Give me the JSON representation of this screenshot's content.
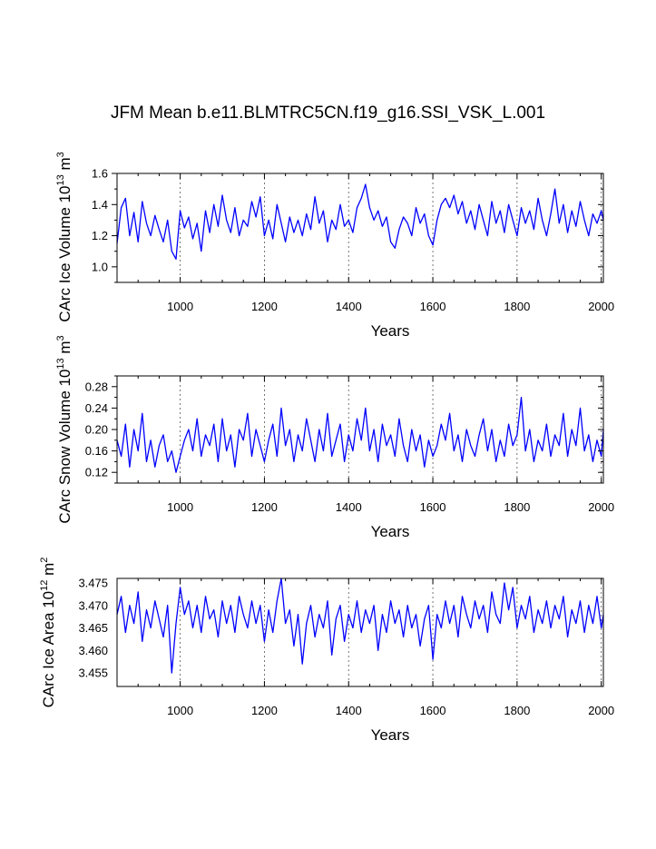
{
  "title": "JFM Mean b.e11.BLMTRC5CN.f19_g16.SSI_VSK_L.001",
  "colors": {
    "line": "#0000ff",
    "axis": "#000000",
    "grid": "#555555"
  },
  "chart_data": [
    {
      "type": "line",
      "ylabel": "CArc Ice Volume 10",
      "ylabel_sup": "13",
      "ylabel_unit": "m",
      "ylabel_unit_sup": "3",
      "xlabel": "Years",
      "xlim": [
        850,
        2005
      ],
      "ylim": [
        0.9,
        1.6
      ],
      "xticks": [
        1000,
        1200,
        1400,
        1600,
        1800,
        2000
      ],
      "xtick_labels": [
        "1000",
        "1200",
        "1400",
        "1600",
        "1800",
        "2000"
      ],
      "yticks": [
        1.0,
        1.2,
        1.4,
        1.6
      ],
      "ytick_labels": [
        "1.0",
        "1.2",
        "1.4",
        "1.6"
      ],
      "grid": "vertical dashed at major x ticks",
      "series": [
        {
          "x": [
            850,
            860,
            870,
            880,
            890,
            900,
            910,
            920,
            930,
            940,
            950,
            960,
            970,
            980,
            990,
            1000,
            1010,
            1020,
            1030,
            1040,
            1050,
            1060,
            1070,
            1080,
            1090,
            1100,
            1110,
            1120,
            1130,
            1140,
            1150,
            1160,
            1170,
            1180,
            1190,
            1200,
            1210,
            1220,
            1230,
            1240,
            1250,
            1260,
            1270,
            1280,
            1290,
            1300,
            1310,
            1320,
            1330,
            1340,
            1350,
            1360,
            1370,
            1380,
            1390,
            1400,
            1410,
            1420,
            1430,
            1440,
            1450,
            1460,
            1470,
            1480,
            1490,
            1500,
            1510,
            1520,
            1530,
            1540,
            1550,
            1560,
            1570,
            1580,
            1590,
            1600,
            1610,
            1620,
            1630,
            1640,
            1650,
            1660,
            1670,
            1680,
            1690,
            1700,
            1710,
            1720,
            1730,
            1740,
            1750,
            1760,
            1770,
            1780,
            1790,
            1800,
            1810,
            1820,
            1830,
            1840,
            1850,
            1860,
            1870,
            1880,
            1890,
            1900,
            1910,
            1920,
            1930,
            1940,
            1950,
            1960,
            1970,
            1980,
            1990,
            2000,
            2005
          ],
          "values": [
            1.15,
            1.38,
            1.44,
            1.2,
            1.35,
            1.16,
            1.42,
            1.28,
            1.2,
            1.33,
            1.24,
            1.16,
            1.3,
            1.1,
            1.05,
            1.36,
            1.25,
            1.32,
            1.18,
            1.28,
            1.1,
            1.36,
            1.22,
            1.4,
            1.26,
            1.46,
            1.3,
            1.22,
            1.38,
            1.2,
            1.3,
            1.26,
            1.42,
            1.32,
            1.45,
            1.2,
            1.3,
            1.18,
            1.4,
            1.28,
            1.16,
            1.32,
            1.22,
            1.3,
            1.2,
            1.34,
            1.24,
            1.45,
            1.28,
            1.36,
            1.16,
            1.3,
            1.24,
            1.4,
            1.26,
            1.3,
            1.22,
            1.38,
            1.44,
            1.53,
            1.38,
            1.3,
            1.36,
            1.26,
            1.32,
            1.16,
            1.12,
            1.24,
            1.32,
            1.28,
            1.2,
            1.38,
            1.28,
            1.34,
            1.2,
            1.14,
            1.3,
            1.4,
            1.44,
            1.38,
            1.46,
            1.34,
            1.42,
            1.28,
            1.36,
            1.24,
            1.4,
            1.3,
            1.2,
            1.42,
            1.28,
            1.36,
            1.22,
            1.4,
            1.3,
            1.2,
            1.38,
            1.28,
            1.36,
            1.24,
            1.44,
            1.3,
            1.2,
            1.34,
            1.5,
            1.28,
            1.4,
            1.22,
            1.36,
            1.26,
            1.42,
            1.3,
            1.2,
            1.34,
            1.28,
            1.36,
            1.3
          ]
        }
      ]
    },
    {
      "type": "line",
      "ylabel": "CArc Snow Volume 10",
      "ylabel_sup": "13",
      "ylabel_unit": "m",
      "ylabel_unit_sup": "3",
      "xlabel": "Years",
      "xlim": [
        850,
        2005
      ],
      "ylim": [
        0.1,
        0.3
      ],
      "xticks": [
        1000,
        1200,
        1400,
        1600,
        1800,
        2000
      ],
      "xtick_labels": [
        "1000",
        "1200",
        "1400",
        "1600",
        "1800",
        "2000"
      ],
      "yticks": [
        0.12,
        0.16,
        0.2,
        0.24,
        0.28
      ],
      "ytick_labels": [
        "0.12",
        "0.16",
        "0.20",
        "0.24",
        "0.28"
      ],
      "grid": "vertical dashed at major x ticks",
      "series": [
        {
          "x": [
            850,
            860,
            870,
            880,
            890,
            900,
            910,
            920,
            930,
            940,
            950,
            960,
            970,
            980,
            990,
            1000,
            1010,
            1020,
            1030,
            1040,
            1050,
            1060,
            1070,
            1080,
            1090,
            1100,
            1110,
            1120,
            1130,
            1140,
            1150,
            1160,
            1170,
            1180,
            1190,
            1200,
            1210,
            1220,
            1230,
            1240,
            1250,
            1260,
            1270,
            1280,
            1290,
            1300,
            1310,
            1320,
            1330,
            1340,
            1350,
            1360,
            1370,
            1380,
            1390,
            1400,
            1410,
            1420,
            1430,
            1440,
            1450,
            1460,
            1470,
            1480,
            1490,
            1500,
            1510,
            1520,
            1530,
            1540,
            1550,
            1560,
            1570,
            1580,
            1590,
            1600,
            1610,
            1620,
            1630,
            1640,
            1650,
            1660,
            1670,
            1680,
            1690,
            1700,
            1710,
            1720,
            1730,
            1740,
            1750,
            1760,
            1770,
            1780,
            1790,
            1800,
            1810,
            1820,
            1830,
            1840,
            1850,
            1860,
            1870,
            1880,
            1890,
            1900,
            1910,
            1920,
            1930,
            1940,
            1950,
            1960,
            1970,
            1980,
            1990,
            2000,
            2005
          ],
          "values": [
            0.18,
            0.15,
            0.21,
            0.13,
            0.2,
            0.16,
            0.23,
            0.14,
            0.18,
            0.13,
            0.17,
            0.19,
            0.14,
            0.16,
            0.12,
            0.15,
            0.18,
            0.2,
            0.16,
            0.22,
            0.15,
            0.19,
            0.17,
            0.21,
            0.14,
            0.22,
            0.16,
            0.19,
            0.13,
            0.2,
            0.18,
            0.23,
            0.15,
            0.2,
            0.17,
            0.14,
            0.18,
            0.21,
            0.15,
            0.24,
            0.17,
            0.2,
            0.14,
            0.19,
            0.16,
            0.22,
            0.18,
            0.14,
            0.2,
            0.16,
            0.23,
            0.15,
            0.18,
            0.21,
            0.14,
            0.19,
            0.16,
            0.22,
            0.18,
            0.24,
            0.16,
            0.2,
            0.14,
            0.21,
            0.17,
            0.19,
            0.15,
            0.22,
            0.17,
            0.14,
            0.2,
            0.16,
            0.19,
            0.13,
            0.18,
            0.15,
            0.17,
            0.21,
            0.18,
            0.23,
            0.16,
            0.19,
            0.14,
            0.2,
            0.17,
            0.15,
            0.19,
            0.22,
            0.16,
            0.2,
            0.14,
            0.18,
            0.15,
            0.21,
            0.17,
            0.19,
            0.26,
            0.16,
            0.2,
            0.14,
            0.18,
            0.16,
            0.21,
            0.15,
            0.19,
            0.17,
            0.23,
            0.15,
            0.2,
            0.17,
            0.24,
            0.16,
            0.19,
            0.14,
            0.18,
            0.15,
            0.2
          ]
        }
      ]
    },
    {
      "type": "line",
      "ylabel": "CArc Ice Area 10",
      "ylabel_sup": "12",
      "ylabel_unit": "m",
      "ylabel_unit_sup": "2",
      "xlabel": "Years",
      "xlim": [
        850,
        2005
      ],
      "ylim": [
        3.452,
        3.476
      ],
      "xticks": [
        1000,
        1200,
        1400,
        1600,
        1800,
        2000
      ],
      "xtick_labels": [
        "1000",
        "1200",
        "1400",
        "1600",
        "1800",
        "2000"
      ],
      "yticks": [
        3.455,
        3.46,
        3.465,
        3.47,
        3.475
      ],
      "ytick_labels": [
        "3.455",
        "3.460",
        "3.465",
        "3.470",
        "3.475"
      ],
      "grid": "vertical dashed at major x ticks",
      "series": [
        {
          "x": [
            850,
            860,
            870,
            880,
            890,
            900,
            910,
            920,
            930,
            940,
            950,
            960,
            970,
            980,
            990,
            1000,
            1010,
            1020,
            1030,
            1040,
            1050,
            1060,
            1070,
            1080,
            1090,
            1100,
            1110,
            1120,
            1130,
            1140,
            1150,
            1160,
            1170,
            1180,
            1190,
            1200,
            1210,
            1220,
            1230,
            1240,
            1250,
            1260,
            1270,
            1280,
            1290,
            1300,
            1310,
            1320,
            1330,
            1340,
            1350,
            1360,
            1370,
            1380,
            1390,
            1400,
            1410,
            1420,
            1430,
            1440,
            1450,
            1460,
            1470,
            1480,
            1490,
            1500,
            1510,
            1520,
            1530,
            1540,
            1550,
            1560,
            1570,
            1580,
            1590,
            1600,
            1610,
            1620,
            1630,
            1640,
            1650,
            1660,
            1670,
            1680,
            1690,
            1700,
            1710,
            1720,
            1730,
            1740,
            1750,
            1760,
            1770,
            1780,
            1790,
            1800,
            1810,
            1820,
            1830,
            1840,
            1850,
            1860,
            1870,
            1880,
            1890,
            1900,
            1910,
            1920,
            1930,
            1940,
            1950,
            1960,
            1970,
            1980,
            1990,
            2000,
            2005
          ],
          "values": [
            3.468,
            3.472,
            3.464,
            3.47,
            3.466,
            3.473,
            3.462,
            3.469,
            3.465,
            3.471,
            3.467,
            3.463,
            3.47,
            3.455,
            3.466,
            3.474,
            3.468,
            3.471,
            3.465,
            3.47,
            3.464,
            3.472,
            3.467,
            3.469,
            3.463,
            3.471,
            3.466,
            3.47,
            3.464,
            3.472,
            3.468,
            3.465,
            3.471,
            3.466,
            3.47,
            3.462,
            3.469,
            3.464,
            3.471,
            3.476,
            3.466,
            3.469,
            3.461,
            3.468,
            3.457,
            3.466,
            3.47,
            3.463,
            3.468,
            3.465,
            3.471,
            3.459,
            3.467,
            3.47,
            3.462,
            3.468,
            3.465,
            3.471,
            3.464,
            3.469,
            3.466,
            3.47,
            3.46,
            3.468,
            3.464,
            3.471,
            3.466,
            3.469,
            3.463,
            3.47,
            3.465,
            3.468,
            3.461,
            3.467,
            3.47,
            3.458,
            3.468,
            3.465,
            3.471,
            3.466,
            3.47,
            3.463,
            3.472,
            3.468,
            3.465,
            3.471,
            3.467,
            3.47,
            3.464,
            3.473,
            3.468,
            3.466,
            3.475,
            3.469,
            3.474,
            3.465,
            3.47,
            3.467,
            3.472,
            3.464,
            3.469,
            3.466,
            3.471,
            3.465,
            3.47,
            3.467,
            3.472,
            3.463,
            3.469,
            3.466,
            3.471,
            3.464,
            3.47,
            3.466,
            3.472,
            3.465,
            3.468
          ]
        }
      ]
    }
  ]
}
